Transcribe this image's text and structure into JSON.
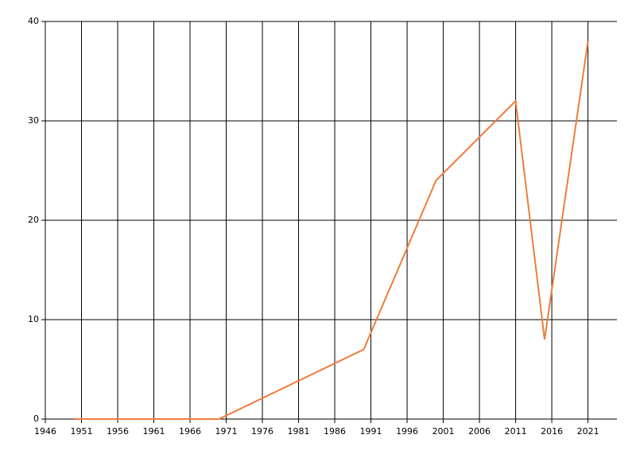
{
  "chart_data": {
    "type": "line",
    "x": [
      1950,
      1970,
      1990,
      2000,
      2011,
      2015,
      2021
    ],
    "series": [
      {
        "color": "#f07c3c",
        "values": [
          0,
          0,
          7,
          24,
          32,
          8,
          38
        ]
      }
    ],
    "xlim": [
      1946,
      2025
    ],
    "xticks": [
      1946,
      1951,
      1956,
      1961,
      1966,
      1971,
      1976,
      1981,
      1986,
      1991,
      1996,
      2001,
      2006,
      2011,
      2016,
      2021
    ],
    "ylim": [
      0,
      40
    ],
    "yticks": [
      0,
      10,
      20,
      30,
      40
    ],
    "grid": true
  }
}
